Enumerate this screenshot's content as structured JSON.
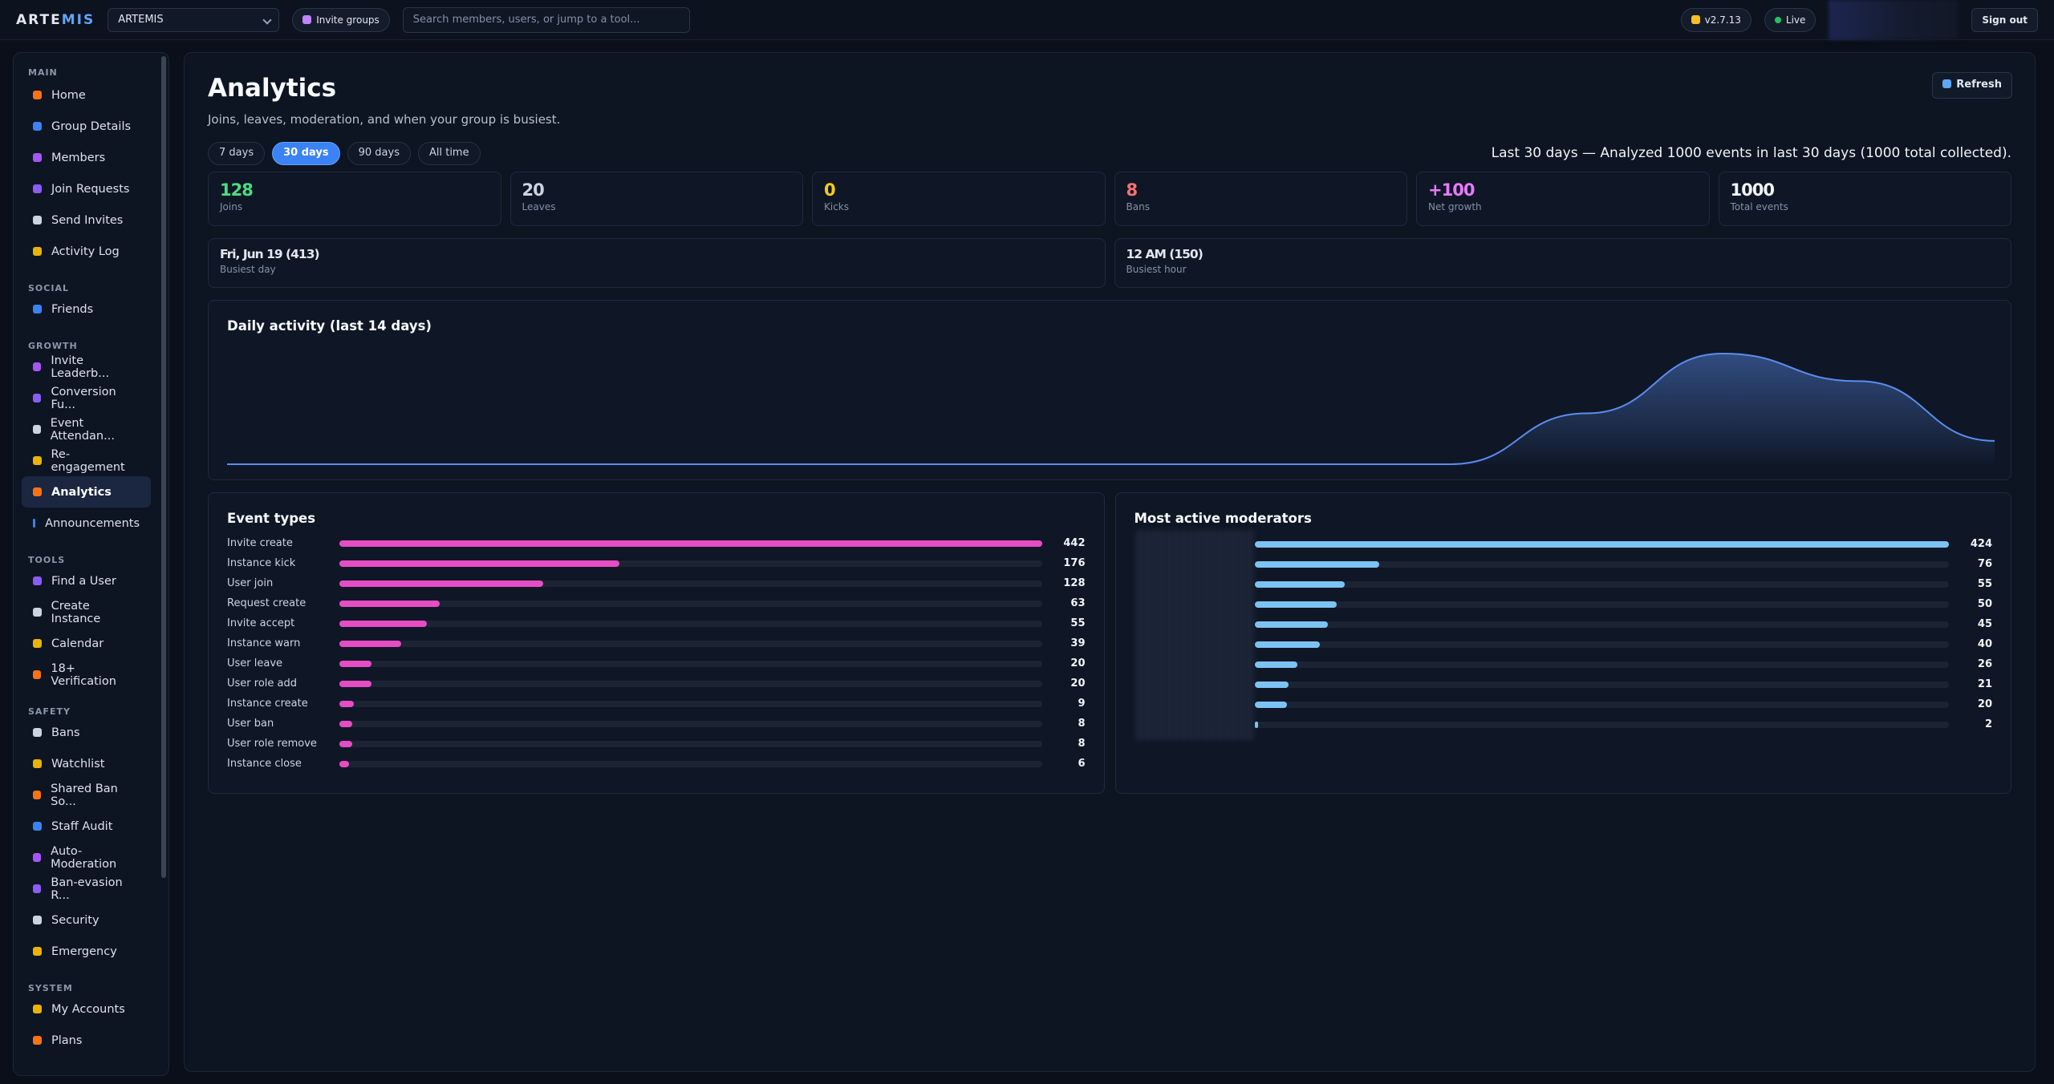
{
  "header": {
    "brand": [
      "ARTE",
      "MIS"
    ],
    "group_select": "ARTEMIS",
    "invite_button": "Invite groups",
    "search_placeholder": "Search members, users, or jump to a tool...",
    "version": "v2.7.13",
    "status": "Live",
    "sign_out": "Sign out"
  },
  "sidebar": [
    {
      "label": "MAIN",
      "items": [
        "Home",
        "Group Details",
        "Members",
        "Join Requests",
        "Send Invites",
        "Activity Log"
      ]
    },
    {
      "label": "SOCIAL",
      "items": [
        "Friends"
      ]
    },
    {
      "label": "GROWTH",
      "items": [
        "Invite Leaderb...",
        "Conversion Fu...",
        "Event Attendan...",
        "Re-engagement",
        "Analytics",
        "Announcements"
      ]
    },
    {
      "label": "TOOLS",
      "items": [
        "Find a User",
        "Create Instance",
        "Calendar",
        "18+ Verification"
      ]
    },
    {
      "label": "SAFETY",
      "items": [
        "Bans",
        "Watchlist",
        "Shared Ban So...",
        "Staff Audit",
        "Auto-Moderation",
        "Ban-evasion R...",
        "Security",
        "Emergency"
      ]
    },
    {
      "label": "SYSTEM",
      "items": [
        "My Accounts",
        "Plans"
      ]
    }
  ],
  "active_item": "Analytics",
  "page": {
    "title": "Analytics",
    "subtitle": "Joins, leaves, moderation, and when your group is busiest.",
    "refresh": "Refresh",
    "ranges": [
      "7 days",
      "30 days",
      "90 days",
      "All time"
    ],
    "active_range": "30 days",
    "summary": "Last 30 days — Analyzed 1000 events in last 30 days (1000 total collected).",
    "stats": [
      {
        "value": "128",
        "label": "Joins",
        "color": "#4ade80"
      },
      {
        "value": "20",
        "label": "Leaves",
        "color": "#cbd5e1"
      },
      {
        "value": "0",
        "label": "Kicks",
        "color": "#facc15"
      },
      {
        "value": "8",
        "label": "Bans",
        "color": "#f87171"
      },
      {
        "value": "+100",
        "label": "Net growth",
        "color": "#e879f9"
      },
      {
        "value": "1000",
        "label": "Total events",
        "color": "#f1f5f9"
      }
    ],
    "busiest": [
      {
        "value": "Fri, Jun 19 (413)",
        "label": "Busiest day"
      },
      {
        "value": "12 AM (150)",
        "label": "Busiest hour"
      }
    ]
  },
  "chart_data": [
    {
      "type": "area",
      "title": "Daily activity (last 14 days)",
      "values": [
        0,
        0,
        0,
        0,
        0,
        0,
        0,
        0,
        0,
        0,
        190,
        413,
        310,
        87
      ],
      "color": "#5b8def"
    },
    {
      "type": "hbar",
      "title": "Event types",
      "categories": [
        "Invite create",
        "Instance kick",
        "User join",
        "Request create",
        "Invite accept",
        "Instance warn",
        "User leave",
        "User role add",
        "Instance create",
        "User ban",
        "User role remove",
        "Instance close"
      ],
      "values": [
        442,
        176,
        128,
        63,
        55,
        39,
        20,
        20,
        9,
        8,
        8,
        6
      ],
      "color": "#e64cc4"
    },
    {
      "type": "hbar",
      "title": "Most active moderators",
      "categories": [
        null,
        null,
        null,
        null,
        null,
        null,
        null,
        null,
        null,
        null
      ],
      "values": [
        424,
        76,
        55,
        50,
        45,
        40,
        26,
        21,
        20,
        2
      ],
      "color": "#7cc3f4"
    }
  ]
}
